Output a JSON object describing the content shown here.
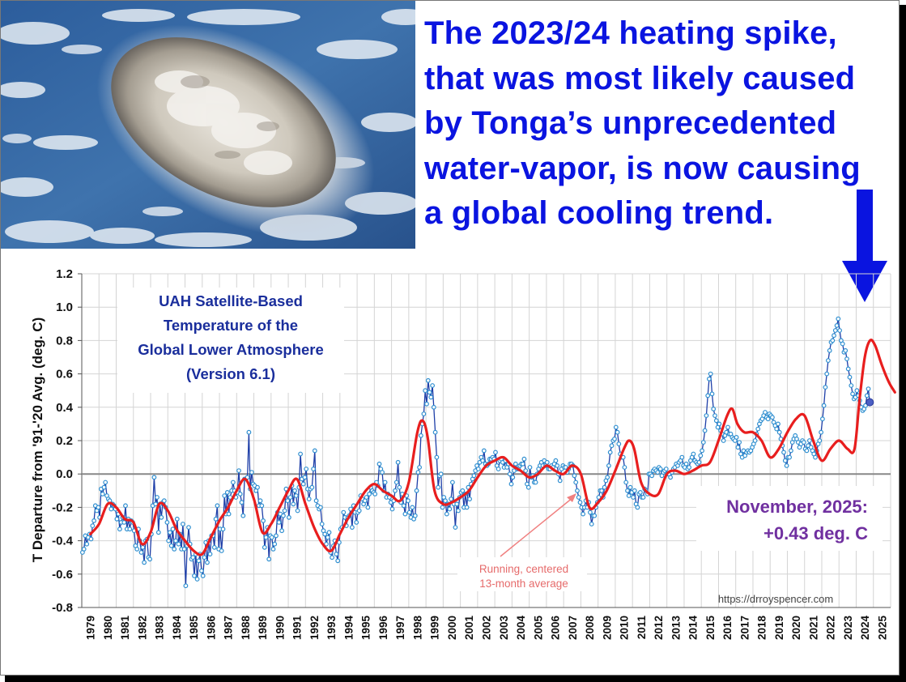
{
  "headline": {
    "lines": [
      "The 2023/24 heating spike,",
      "that was most likely caused",
      "by Tonga’s unprecedented",
      "water-vapor, is now causing",
      "a global cooling trend."
    ]
  },
  "chart_data": {
    "type": "line",
    "title_lines": [
      "UAH Satellite-Based",
      "Temperature of the",
      "Global Lower Atmosphere",
      "(Version 6.1)"
    ],
    "ylabel": "T Departure from '91-'20 Avg. (deg. C)",
    "xlabel": "",
    "ylim": [
      -0.8,
      1.2
    ],
    "yticks": [
      "1.2",
      "1.0",
      "0.8",
      "0.6",
      "0.4",
      "0.2",
      "0.0",
      "-0.2",
      "-0.4",
      "-0.6",
      "-0.8"
    ],
    "year_start": 1979,
    "year_labels": [
      "1979",
      "1980",
      "1981",
      "1982",
      "1983",
      "1984",
      "1985",
      "1986",
      "1987",
      "1988",
      "1989",
      "1990",
      "1991",
      "1992",
      "1993",
      "1994",
      "1995",
      "1996",
      "1997",
      "1998",
      "1999",
      "2000",
      "2001",
      "2002",
      "2003",
      "2004",
      "2005",
      "2006",
      "2007",
      "2008",
      "2009",
      "2010",
      "2011",
      "2012",
      "2013",
      "2014",
      "2015",
      "2016",
      "2017",
      "2018",
      "2019",
      "2020",
      "2021",
      "2022",
      "2023",
      "2024",
      "2025"
    ],
    "grid": true,
    "latest_label_lines": [
      "November, 2025:",
      "+0.43 deg. C"
    ],
    "latest_value": 0.43,
    "annotation_lines": [
      "Running, centered",
      "13-month average"
    ],
    "credit": "https://drroyspencer.com",
    "monthly_color": "#1f3fa8",
    "average_color": "#e81e1e",
    "series": [
      {
        "name": "Running, centered 13-month average",
        "x_years": [
          1979.0,
          1979.5,
          1980.0,
          1980.5,
          1981.0,
          1981.5,
          1982.0,
          1982.5,
          1983.0,
          1983.5,
          1984.0,
          1984.5,
          1985.0,
          1985.5,
          1986.0,
          1986.5,
          1987.0,
          1987.5,
          1988.0,
          1988.5,
          1989.0,
          1989.5,
          1990.0,
          1990.5,
          1991.0,
          1991.5,
          1992.0,
          1992.5,
          1993.0,
          1993.5,
          1994.0,
          1994.5,
          1995.0,
          1995.5,
          1996.0,
          1996.5,
          1997.0,
          1997.5,
          1998.0,
          1998.3,
          1998.6,
          1999.0,
          1999.5,
          2000.0,
          2000.5,
          2001.0,
          2001.5,
          2002.0,
          2002.5,
          2003.0,
          2003.5,
          2004.0,
          2004.5,
          2005.0,
          2005.5,
          2006.0,
          2006.5,
          2007.0,
          2007.5,
          2008.0,
          2008.5,
          2009.0,
          2009.5,
          2010.0,
          2010.3,
          2010.6,
          2011.0,
          2011.5,
          2012.0,
          2012.5,
          2013.0,
          2013.5,
          2014.0,
          2014.5,
          2015.0,
          2015.5,
          2016.0,
          2016.3,
          2016.6,
          2017.0,
          2017.5,
          2018.0,
          2018.5,
          2019.0,
          2019.5,
          2020.0,
          2020.5,
          2021.0,
          2021.5,
          2022.0,
          2022.5,
          2023.0,
          2023.4,
          2023.7,
          2024.0,
          2024.3,
          2024.6,
          2025.0,
          2025.4,
          2025.75
        ],
        "values": [
          -0.36,
          -0.3,
          -0.18,
          -0.2,
          -0.27,
          -0.29,
          -0.42,
          -0.35,
          -0.18,
          -0.22,
          -0.33,
          -0.4,
          -0.46,
          -0.48,
          -0.38,
          -0.28,
          -0.2,
          -0.1,
          -0.03,
          -0.15,
          -0.35,
          -0.3,
          -0.2,
          -0.1,
          -0.03,
          -0.18,
          -0.32,
          -0.42,
          -0.46,
          -0.36,
          -0.26,
          -0.18,
          -0.1,
          -0.06,
          -0.1,
          -0.13,
          -0.16,
          -0.05,
          0.25,
          0.32,
          0.22,
          -0.1,
          -0.18,
          -0.17,
          -0.14,
          -0.1,
          -0.02,
          0.05,
          0.08,
          0.1,
          0.05,
          0.02,
          -0.02,
          0.0,
          0.05,
          0.02,
          0.0,
          0.05,
          0.0,
          -0.2,
          -0.17,
          -0.1,
          0.02,
          0.15,
          0.2,
          0.15,
          -0.05,
          -0.12,
          -0.12,
          0.0,
          0.02,
          0.0,
          0.02,
          0.05,
          0.07,
          0.2,
          0.35,
          0.39,
          0.3,
          0.25,
          0.25,
          0.2,
          0.1,
          0.15,
          0.25,
          0.33,
          0.35,
          0.2,
          0.08,
          0.15,
          0.2,
          0.15,
          0.15,
          0.45,
          0.7,
          0.8,
          0.77,
          0.65,
          0.55,
          0.49
        ]
      },
      {
        "name": "Monthly",
        "note": "monthly anomaly sequence (deg. C), Jan 1979 to Nov 2025",
        "values": [
          -0.47,
          -0.45,
          -0.37,
          -0.42,
          -0.38,
          -0.36,
          -0.39,
          -0.31,
          -0.28,
          -0.19,
          -0.22,
          -0.2,
          -0.26,
          -0.09,
          -0.12,
          -0.08,
          -0.05,
          -0.13,
          -0.15,
          -0.16,
          -0.21,
          -0.18,
          -0.19,
          -0.21,
          -0.27,
          -0.24,
          -0.33,
          -0.29,
          -0.26,
          -0.29,
          -0.19,
          -0.33,
          -0.27,
          -0.33,
          -0.28,
          -0.29,
          -0.34,
          -0.43,
          -0.45,
          -0.33,
          -0.4,
          -0.47,
          -0.44,
          -0.53,
          -0.4,
          -0.39,
          -0.5,
          -0.51,
          -0.36,
          -0.19,
          -0.02,
          -0.18,
          -0.14,
          -0.35,
          -0.18,
          -0.26,
          -0.17,
          -0.16,
          -0.2,
          -0.29,
          -0.4,
          -0.35,
          -0.43,
          -0.33,
          -0.45,
          -0.4,
          -0.27,
          -0.42,
          -0.36,
          -0.45,
          -0.3,
          -0.45,
          -0.67,
          -0.43,
          -0.32,
          -0.42,
          -0.51,
          -0.5,
          -0.61,
          -0.48,
          -0.63,
          -0.52,
          -0.48,
          -0.58,
          -0.61,
          -0.5,
          -0.41,
          -0.53,
          -0.4,
          -0.48,
          -0.37,
          -0.37,
          -0.44,
          -0.27,
          -0.19,
          -0.45,
          -0.33,
          -0.46,
          -0.33,
          -0.13,
          -0.24,
          -0.11,
          -0.24,
          -0.14,
          -0.1,
          -0.05,
          -0.1,
          -0.14,
          -0.11,
          0.02,
          -0.12,
          -0.17,
          -0.25,
          -0.03,
          -0.03,
          -0.02,
          0.25,
          -0.09,
          0.01,
          -0.06,
          -0.07,
          -0.1,
          -0.08,
          -0.19,
          -0.16,
          -0.19,
          -0.28,
          -0.44,
          -0.38,
          -0.32,
          -0.51,
          -0.37,
          -0.38,
          -0.45,
          -0.42,
          -0.37,
          -0.23,
          -0.29,
          -0.24,
          -0.34,
          -0.25,
          -0.22,
          -0.09,
          -0.16,
          -0.26,
          -0.14,
          -0.07,
          -0.18,
          -0.1,
          -0.13,
          -0.22,
          -0.08,
          0.12,
          -0.03,
          -0.06,
          -0.02,
          0.03,
          -0.09,
          -0.15,
          -0.09,
          -0.08,
          0.03,
          0.14,
          -0.16,
          -0.19,
          -0.21,
          -0.2,
          -0.3,
          -0.34,
          -0.36,
          -0.42,
          -0.38,
          -0.35,
          -0.47,
          -0.5,
          -0.43,
          -0.4,
          -0.48,
          -0.52,
          -0.41,
          -0.33,
          -0.32,
          -0.23,
          -0.26,
          -0.31,
          -0.26,
          -0.25,
          -0.21,
          -0.32,
          -0.19,
          -0.23,
          -0.29,
          -0.23,
          -0.22,
          -0.13,
          -0.15,
          -0.18,
          -0.16,
          -0.14,
          -0.2,
          -0.12,
          -0.08,
          -0.1,
          -0.11,
          -0.12,
          -0.05,
          -0.07,
          0.06,
          0.03,
          0.01,
          -0.1,
          -0.05,
          -0.14,
          -0.12,
          -0.14,
          -0.17,
          -0.21,
          -0.16,
          -0.1,
          -0.05,
          0.07,
          -0.08,
          -0.17,
          -0.12,
          -0.19,
          -0.24,
          -0.13,
          -0.16,
          -0.23,
          -0.26,
          -0.2,
          -0.27,
          -0.25,
          -0.1,
          0.01,
          0.04,
          0.23,
          0.3,
          0.36,
          0.5,
          0.42,
          0.56,
          0.49,
          0.46,
          0.53,
          0.4,
          0.25,
          0.1,
          -0.08,
          -0.01,
          0.0,
          -0.2,
          -0.14,
          -0.16,
          -0.24,
          -0.18,
          -0.21,
          -0.15,
          -0.05,
          -0.18,
          -0.32,
          -0.18,
          -0.22,
          -0.14,
          -0.11,
          -0.1,
          -0.2,
          -0.12,
          -0.2,
          -0.08,
          -0.15,
          -0.06,
          -0.03,
          -0.01,
          0.02,
          0.05,
          0.03,
          0.07,
          0.1,
          0.08,
          0.14,
          0.06,
          0.05,
          0.06,
          0.09,
          0.09,
          0.1,
          0.09,
          0.13,
          0.05,
          0.03,
          0.08,
          0.09,
          0.07,
          0.04,
          0.08,
          0.04,
          0.06,
          0.0,
          -0.06,
          -0.02,
          0.02,
          0.06,
          0.03,
          0.03,
          0.05,
          0.06,
          0.06,
          0.09,
          0.02,
          -0.06,
          -0.08,
          0.04,
          -0.02,
          -0.01,
          -0.05,
          -0.05,
          0.0,
          0.03,
          0.05,
          0.07,
          0.05,
          0.08,
          0.05,
          0.07,
          0.03,
          0.03,
          0.05,
          0.04,
          0.06,
          0.08,
          0.05,
          0.0,
          -0.04,
          0.03,
          0.05,
          0.04,
          0.04,
          0.01,
          0.03,
          0.06,
          0.06,
          0.05,
          -0.01,
          -0.05,
          -0.1,
          -0.14,
          -0.17,
          -0.2,
          -0.24,
          -0.2,
          -0.16,
          -0.2,
          -0.17,
          -0.23,
          -0.3,
          -0.25,
          -0.25,
          -0.2,
          -0.17,
          -0.14,
          -0.1,
          -0.1,
          -0.14,
          -0.08,
          -0.04,
          -0.02,
          0.05,
          0.13,
          0.17,
          0.2,
          0.21,
          0.28,
          0.25,
          0.18,
          0.12,
          0.1,
          0.1,
          0.04,
          -0.05,
          -0.1,
          -0.13,
          -0.08,
          -0.11,
          -0.14,
          -0.1,
          -0.18,
          -0.2,
          -0.12,
          -0.11,
          -0.14,
          -0.14,
          -0.09,
          -0.1,
          -0.12,
          0.0,
          0.0,
          -0.01,
          0.02,
          0.03,
          0.02,
          0.01,
          0.04,
          0.03,
          -0.01,
          0.01,
          0.02,
          0.03,
          0.0,
          0.0,
          -0.02,
          0.01,
          0.03,
          0.04,
          0.06,
          0.05,
          0.07,
          0.08,
          0.1,
          0.05,
          0.04,
          0.06,
          0.03,
          0.04,
          0.08,
          0.1,
          0.12,
          0.08,
          0.07,
          0.06,
          0.07,
          0.11,
          0.14,
          0.19,
          0.26,
          0.35,
          0.47,
          0.57,
          0.6,
          0.48,
          0.39,
          0.35,
          0.32,
          0.28,
          0.3,
          0.26,
          0.24,
          0.2,
          0.23,
          0.25,
          0.28,
          0.24,
          0.24,
          0.22,
          0.21,
          0.2,
          0.22,
          0.16,
          0.19,
          0.12,
          0.1,
          0.14,
          0.11,
          0.13,
          0.14,
          0.13,
          0.14,
          0.16,
          0.18,
          0.2,
          0.24,
          0.27,
          0.3,
          0.32,
          0.33,
          0.35,
          0.37,
          0.34,
          0.33,
          0.36,
          0.35,
          0.34,
          0.31,
          0.29,
          0.27,
          0.3,
          0.25,
          0.21,
          0.17,
          0.13,
          0.08,
          0.05,
          0.1,
          0.1,
          0.14,
          0.19,
          0.21,
          0.23,
          0.21,
          0.19,
          0.16,
          0.18,
          0.2,
          0.19,
          0.15,
          0.14,
          0.17,
          0.2,
          0.16,
          0.14,
          0.12,
          0.1,
          0.14,
          0.18,
          0.2,
          0.25,
          0.33,
          0.41,
          0.52,
          0.6,
          0.68,
          0.74,
          0.79,
          0.8,
          0.83,
          0.86,
          0.89,
          0.93,
          0.86,
          0.8,
          0.78,
          0.73,
          0.74,
          0.69,
          0.63,
          0.58,
          0.53,
          0.48,
          0.45,
          0.46,
          0.5,
          0.47,
          0.44,
          0.4,
          0.38,
          0.39,
          0.41,
          0.47,
          0.51,
          0.43
        ]
      }
    ]
  }
}
